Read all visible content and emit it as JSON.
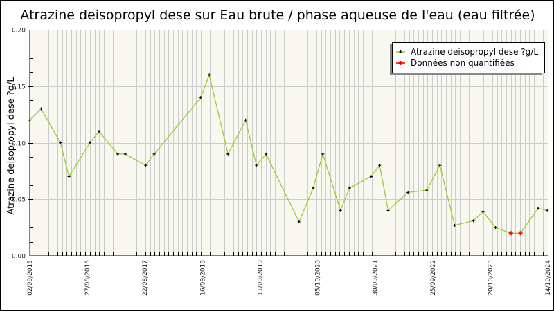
{
  "chart_data": {
    "type": "line",
    "title": "Atrazine deisopropyl dese sur Eau brute / phase aqueuse de l'eau (eau filtrée)",
    "xlabel": "",
    "ylabel": "Atrazine deisopropyl dese ?g/L",
    "ylim": [
      0,
      0.2
    ],
    "xlim": [
      2015.67,
      2024.79
    ],
    "grid": true,
    "legend_position": "top-right",
    "y_ticks": [
      "0.00",
      "0.05",
      "0.10",
      "0.15",
      "0.20"
    ],
    "x_tick_labels": [
      "02/09/2015",
      "27/08/2016",
      "22/08/2017",
      "16/09/2018",
      "11/09/2019",
      "05/10/2020",
      "30/09/2021",
      "25/09/2022",
      "20/10/2023",
      "14/10/2024"
    ],
    "colors": {
      "line": "#99cc33",
      "marker": "#000000",
      "non_quantified": "#ff0000",
      "plot_background": "#f8f8f0",
      "grid": "#cccccc"
    },
    "series": [
      {
        "name": "Atrazine deisopropyl dese ?g/L",
        "x": [
          2015.67,
          2015.87,
          2016.21,
          2016.36,
          2016.73,
          2016.89,
          2017.22,
          2017.35,
          2017.71,
          2017.86,
          2018.68,
          2018.83,
          2019.16,
          2019.47,
          2019.66,
          2019.83,
          2020.41,
          2020.66,
          2020.83,
          2021.14,
          2021.3,
          2021.68,
          2021.83,
          2021.98,
          2022.33,
          2022.66,
          2022.89,
          2023.15,
          2023.48,
          2023.65,
          2023.87,
          2024.14,
          2024.31,
          2024.62,
          2024.78
        ],
        "values": [
          0.12,
          0.13,
          0.1,
          0.07,
          0.1,
          0.11,
          0.09,
          0.09,
          0.08,
          0.09,
          0.14,
          0.16,
          0.09,
          0.12,
          0.08,
          0.09,
          0.03,
          0.06,
          0.09,
          0.04,
          0.06,
          0.07,
          0.08,
          0.04,
          0.056,
          0.058,
          0.08,
          0.027,
          0.031,
          0.039,
          0.025,
          0.02,
          0.02,
          0.042,
          0.04
        ]
      },
      {
        "name": "Données non quantifiées",
        "x": [
          2024.14,
          2024.31
        ],
        "values": [
          0.02,
          0.02
        ]
      }
    ]
  },
  "legend": {
    "items": [
      {
        "label": "Atrazine deisopropyl dese ?g/L"
      },
      {
        "label": "Données non quantifiées"
      }
    ]
  }
}
